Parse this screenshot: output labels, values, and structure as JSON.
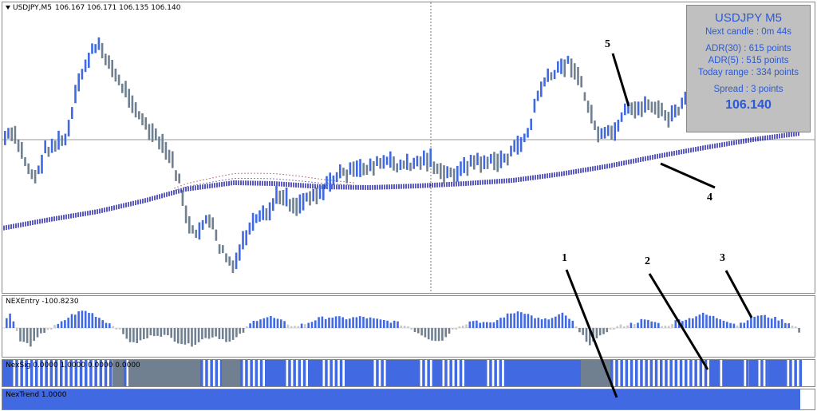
{
  "main": {
    "symbol_label": "USDJPY,M5",
    "ohlc_label": "106.167 106.171 106.135 106.140"
  },
  "info_box": {
    "title": "USDJPY M5",
    "next_candle": "Next candle : 0m 44s",
    "adr30": "ADR(30) : 615 points",
    "adr5": "ADR(5) : 515 points",
    "today_range": "Today range : 334 points",
    "spread": "Spread : 3 points",
    "price": "106.140"
  },
  "indicators": {
    "entry_label": "NEXEntry -100.8230",
    "signal_label": "NexSig 0.0000 1.0000 0.0000 0.0000",
    "trend_label": "NexTrend 1.0000"
  },
  "annotations": [
    "1",
    "2",
    "3",
    "4",
    "5"
  ],
  "colors": {
    "bull": "#4169e1",
    "bear": "#708090",
    "ma_dots": "#0000a0",
    "info_text": "#2a5ad8",
    "info_bg": "#c0c0c0"
  }
}
